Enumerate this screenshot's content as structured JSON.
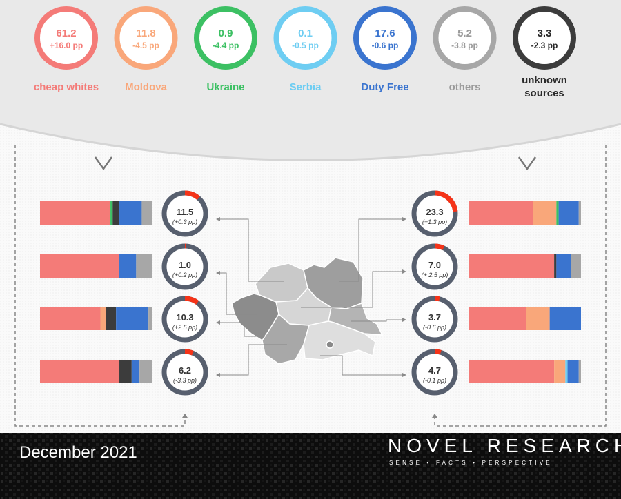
{
  "colors": {
    "cheap_whites": "#f47b78",
    "moldova": "#f9a77a",
    "ukraine": "#3cc063",
    "serbia": "#6ecdf2",
    "duty_free": "#3a74cf",
    "others": "#a7a7a7",
    "unknown": "#3c3c3c",
    "donut_track": "#575f6e",
    "donut_accent": "#f53318"
  },
  "chart_data": [
    {
      "type": "pie",
      "title": "",
      "series": [
        {
          "name": "cheap whites",
          "value": 61.2,
          "delta": "+16.0 pp"
        },
        {
          "name": "Moldova",
          "value": 11.8,
          "delta": "-4.5 pp"
        },
        {
          "name": "Ukraine",
          "value": 0.9,
          "delta": "-4.4 pp"
        },
        {
          "name": "Serbia",
          "value": 0.1,
          "delta": "-0.5 pp"
        },
        {
          "name": "Duty Free",
          "value": 17.6,
          "delta": "-0.6 pp"
        },
        {
          "name": "others",
          "value": 5.2,
          "delta": "-3.8 pp"
        },
        {
          "name": "unknown sources",
          "value": 3.3,
          "delta": "-2.3 pp"
        }
      ]
    },
    {
      "type": "bar",
      "title": "",
      "segment_order": [
        "cheap whites",
        "Moldova",
        "Ukraine",
        "Serbia",
        "unknown sources",
        "Duty Free",
        "others"
      ],
      "regions": [
        {
          "side": "left",
          "value": "11.5",
          "delta": "(+0.3 pp)",
          "share": 11.5,
          "segments": [
            63,
            0,
            2,
            0,
            6,
            20,
            9
          ]
        },
        {
          "side": "left",
          "value": "1.0",
          "delta": "(+0.2 pp)",
          "share": 1.0,
          "segments": [
            71,
            0,
            0,
            0,
            0,
            15,
            14
          ]
        },
        {
          "side": "left",
          "value": "10.3",
          "delta": "(+2.5 pp)",
          "share": 10.3,
          "segments": [
            54,
            5,
            0,
            0,
            9,
            29,
            3
          ]
        },
        {
          "side": "left",
          "value": "6.2",
          "delta": "(-3.3 pp)",
          "share": 6.2,
          "segments": [
            71,
            0,
            0,
            0,
            11,
            7,
            11
          ]
        },
        {
          "side": "right",
          "value": "23.3",
          "delta": "(+1.3 pp)",
          "share": 23.3,
          "segments": [
            57,
            21,
            2,
            0,
            0,
            18,
            2
          ]
        },
        {
          "side": "right",
          "value": "7.0",
          "delta": "(+ 2.5 pp)",
          "share": 7.0,
          "segments": [
            76,
            0,
            0,
            0,
            2,
            13,
            9
          ]
        },
        {
          "side": "right",
          "value": "3.7",
          "delta": "(-0.6 pp)",
          "share": 3.7,
          "segments": [
            51,
            21,
            0,
            0,
            0,
            28,
            0
          ]
        },
        {
          "side": "right",
          "value": "4.7",
          "delta": "(-0.1 pp)",
          "share": 4.7,
          "segments": [
            76,
            10,
            0,
            2,
            0,
            10,
            2
          ]
        }
      ]
    }
  ],
  "footer": {
    "date": "December 2021",
    "brand": "NOVEL RESEARCH",
    "tagline": "SENSE • FACTS • PERSPECTIVE"
  }
}
